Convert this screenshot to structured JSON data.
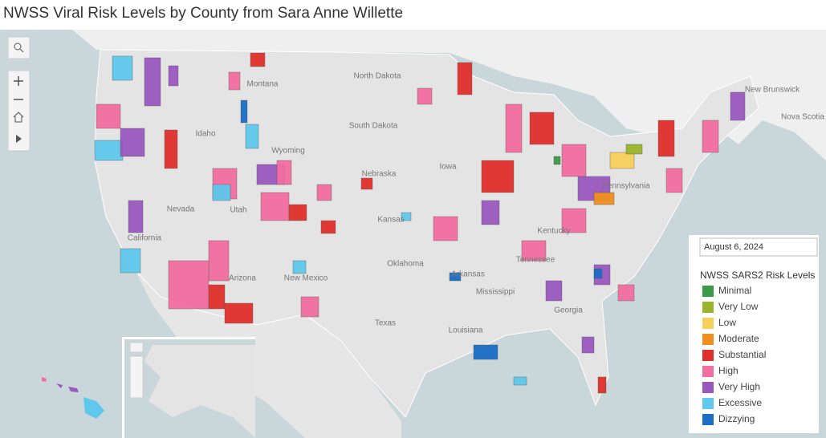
{
  "header": {
    "title": "NWSS Viral Risk Levels by County from Sara Anne Willette"
  },
  "map": {
    "labels": [
      "North Dakota",
      "Montana",
      "South Dakota",
      "Idaho",
      "Wyoming",
      "Nevada",
      "Utah",
      "Nebraska",
      "Iowa",
      "Kansas",
      "California",
      "Arizona",
      "New Mexico",
      "Oklahoma",
      "Texas",
      "Louisiana",
      "Mississippi",
      "Tennessee",
      "Georgia",
      "Arkansas",
      "Kentucky",
      "Pennsylvania",
      "New Brunswick",
      "Nova Scotia"
    ]
  },
  "date_filter": "August 6, 2024",
  "legend": {
    "title": "NWSS SARS2 Risk Levels",
    "items": [
      {
        "label": "Minimal",
        "color": "#3b9a47"
      },
      {
        "label": "Very Low",
        "color": "#9bb42b"
      },
      {
        "label": "Low",
        "color": "#f7d05b"
      },
      {
        "label": "Moderate",
        "color": "#ef8f1f"
      },
      {
        "label": "Substantial",
        "color": "#df2f2c"
      },
      {
        "label": "High",
        "color": "#f26ea1"
      },
      {
        "label": "Very High",
        "color": "#9a58bf"
      },
      {
        "label": "Excessive",
        "color": "#5fc8ec"
      },
      {
        "label": "Dizzying",
        "color": "#1b6dc5"
      }
    ]
  }
}
